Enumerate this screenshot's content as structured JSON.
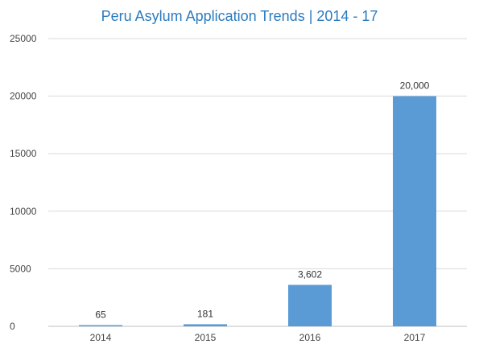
{
  "chart_data": {
    "type": "bar",
    "title": "Peru Asylum Application Trends | 2014 - 17",
    "xlabel": "",
    "ylabel": "",
    "categories": [
      "2014",
      "2015",
      "2016",
      "2017"
    ],
    "values": [
      65,
      181,
      3602,
      20000
    ],
    "data_labels": [
      "65",
      "181",
      "3,602",
      "20,000"
    ],
    "ylim": [
      0,
      25000
    ],
    "yticks": [
      0,
      5000,
      10000,
      15000,
      20000,
      25000
    ],
    "ytick_labels": [
      "0",
      "5000",
      "10000",
      "15000",
      "20000",
      "25000"
    ],
    "grid": true,
    "legend": "none",
    "colors": {
      "bar": "#5b9bd5",
      "title": "#2b7bbf",
      "grid": "#d9d9d9",
      "axis": "#bfbfbf"
    }
  }
}
